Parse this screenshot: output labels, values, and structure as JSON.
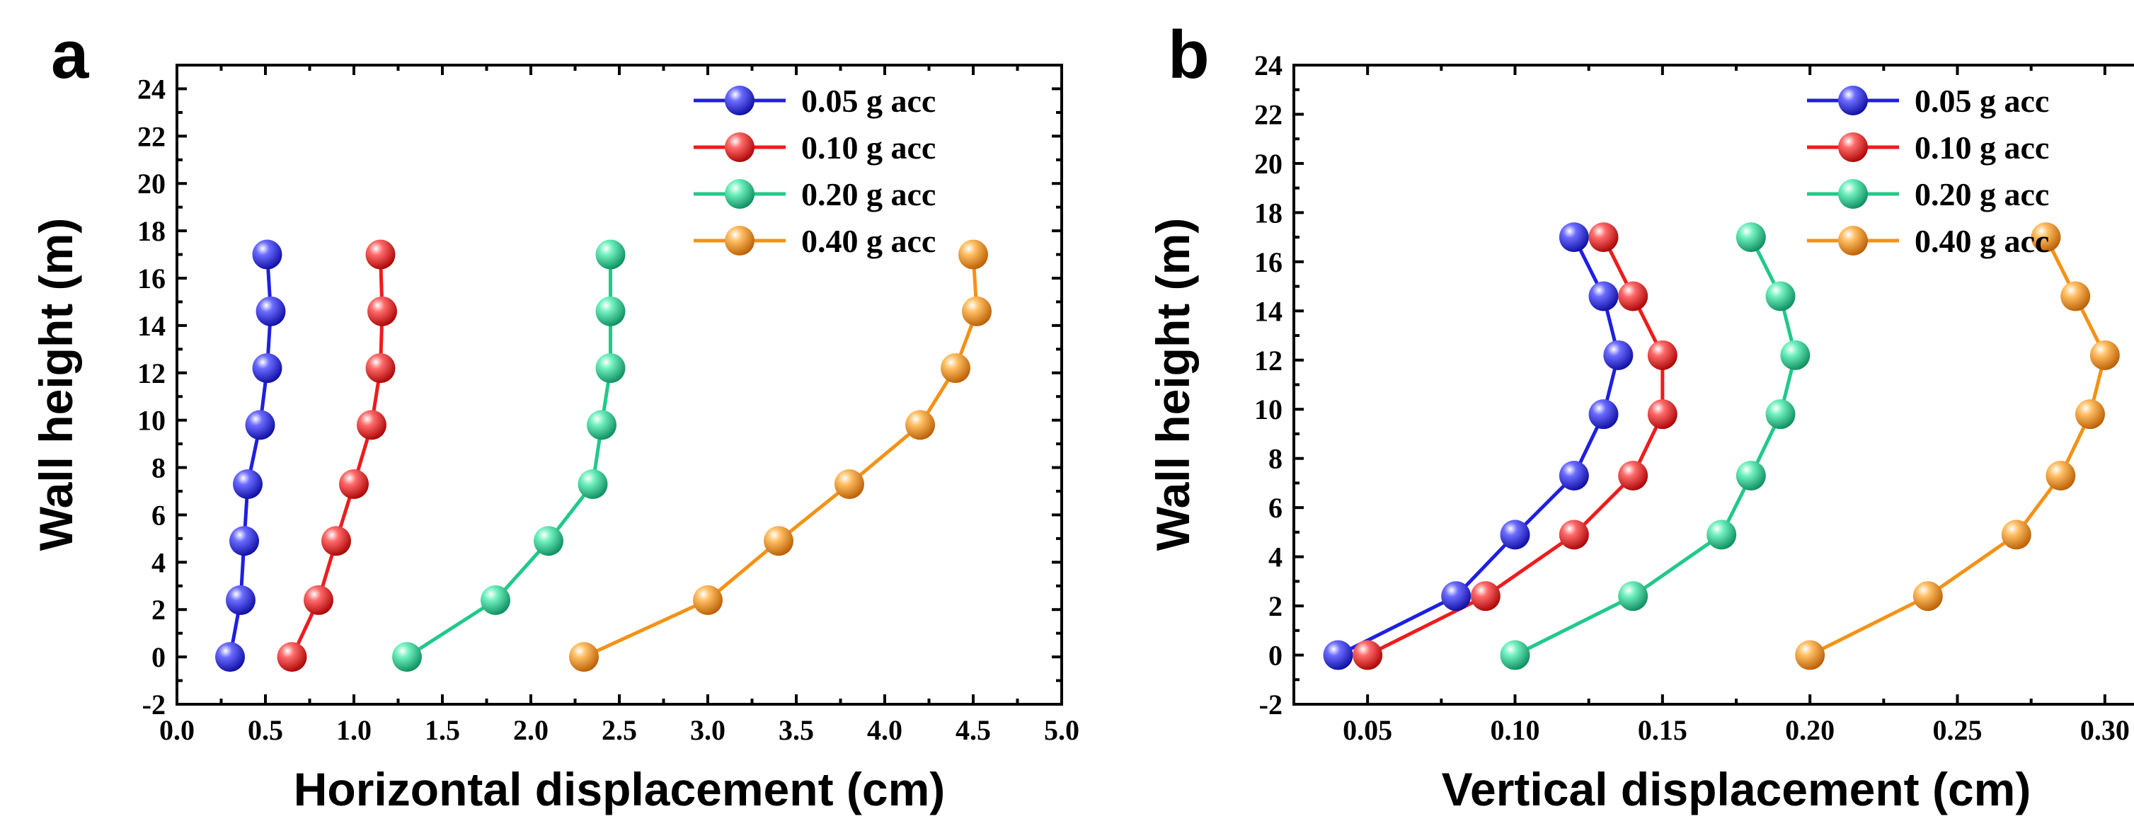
{
  "chart_data": [
    {
      "panel": "a",
      "type": "line",
      "xlabel": "Horizontal displacement (cm)",
      "ylabel": "Wall height (m)",
      "xlim": [
        0.0,
        5.0
      ],
      "ylim": [
        -2,
        25
      ],
      "xticks": [
        "0.0",
        "0.5",
        "1.0",
        "1.5",
        "2.0",
        "2.5",
        "3.0",
        "3.5",
        "4.0",
        "4.5",
        "5.0"
      ],
      "yticks": [
        "-2",
        "0",
        "2",
        "4",
        "6",
        "8",
        "10",
        "12",
        "14",
        "16",
        "18",
        "20",
        "22",
        "24"
      ],
      "grid": false,
      "legend_position": "top-right",
      "series": [
        {
          "name": "0.05 g acc",
          "color": "#1f1fe0",
          "x": [
            0.3,
            0.36,
            0.38,
            0.4,
            0.47,
            0.51,
            0.53,
            0.51
          ],
          "y": [
            0.0,
            2.4,
            4.9,
            7.3,
            9.8,
            12.2,
            14.6,
            17.0
          ]
        },
        {
          "name": "0.10 g acc",
          "color": "#ee1c1c",
          "x": [
            0.65,
            0.8,
            0.9,
            1.0,
            1.1,
            1.15,
            1.16,
            1.15
          ],
          "y": [
            0.0,
            2.4,
            4.9,
            7.3,
            9.8,
            12.2,
            14.6,
            17.0
          ]
        },
        {
          "name": "0.20 g acc",
          "color": "#20c98a",
          "x": [
            1.3,
            1.8,
            2.1,
            2.35,
            2.4,
            2.45,
            2.45,
            2.45
          ],
          "y": [
            0.0,
            2.4,
            4.9,
            7.3,
            9.8,
            12.2,
            14.6,
            17.0
          ]
        },
        {
          "name": "0.40 g acc",
          "color": "#f39216",
          "x": [
            2.3,
            3.0,
            3.4,
            3.8,
            4.2,
            4.4,
            4.52,
            4.5
          ],
          "y": [
            0.0,
            2.4,
            4.9,
            7.3,
            9.8,
            12.2,
            14.6,
            17.0
          ]
        }
      ]
    },
    {
      "panel": "b",
      "type": "line",
      "xlabel": "Vertical displacement (cm)",
      "ylabel": "Wall height (m)",
      "xlim": [
        0.025,
        0.325
      ],
      "ylim": [
        -2,
        24
      ],
      "xticks": [
        "0.05",
        "0.10",
        "0.15",
        "0.20",
        "0.25",
        "0.30"
      ],
      "yticks": [
        "-2",
        "0",
        "2",
        "4",
        "6",
        "8",
        "10",
        "12",
        "14",
        "16",
        "18",
        "20",
        "22",
        "24"
      ],
      "grid": false,
      "legend_position": "top-right",
      "series": [
        {
          "name": "0.05 g acc",
          "color": "#1f1fe0",
          "x": [
            0.04,
            0.08,
            0.1,
            0.12,
            0.13,
            0.135,
            0.13,
            0.12
          ],
          "y": [
            0.0,
            2.4,
            4.9,
            7.3,
            9.8,
            12.2,
            14.6,
            17.0
          ]
        },
        {
          "name": "0.10 g acc",
          "color": "#ee1c1c",
          "x": [
            0.05,
            0.09,
            0.12,
            0.14,
            0.15,
            0.15,
            0.14,
            0.13
          ],
          "y": [
            0.0,
            2.4,
            4.9,
            7.3,
            9.8,
            12.2,
            14.6,
            17.0
          ]
        },
        {
          "name": "0.20 g acc",
          "color": "#20c98a",
          "x": [
            0.1,
            0.14,
            0.17,
            0.18,
            0.19,
            0.195,
            0.19,
            0.18
          ],
          "y": [
            0.0,
            2.4,
            4.9,
            7.3,
            9.8,
            12.2,
            14.6,
            17.0
          ]
        },
        {
          "name": "0.40 g acc",
          "color": "#f39216",
          "x": [
            0.2,
            0.24,
            0.27,
            0.285,
            0.295,
            0.3,
            0.29,
            0.28
          ],
          "y": [
            0.0,
            2.4,
            4.9,
            7.3,
            9.8,
            12.2,
            14.6,
            17.0
          ]
        }
      ]
    }
  ]
}
